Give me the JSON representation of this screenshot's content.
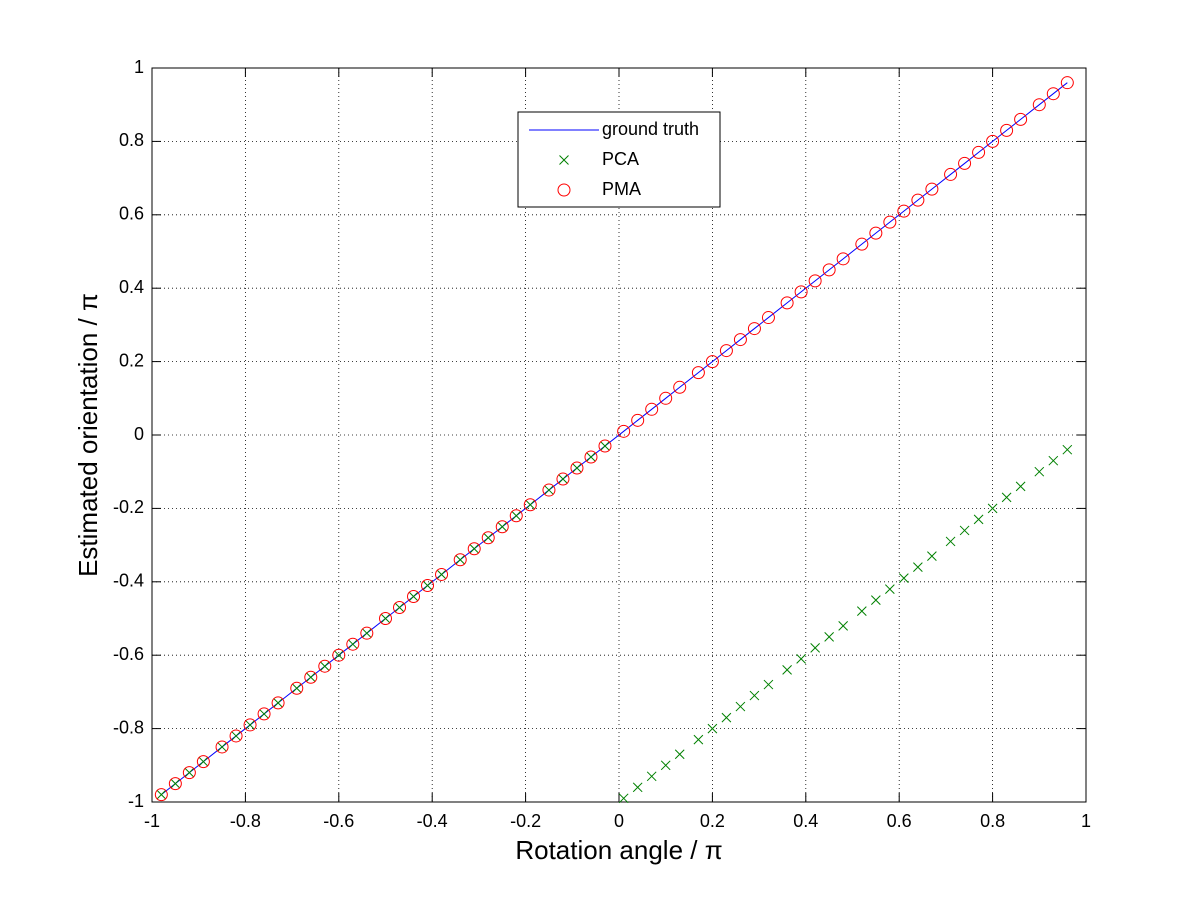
{
  "chart_data": {
    "type": "line",
    "xlabel": "Rotation angle / π",
    "ylabel": "Estimated orientation / π",
    "x": [
      -0.98,
      -0.95,
      -0.92,
      -0.89,
      -0.85,
      -0.82,
      -0.79,
      -0.76,
      -0.73,
      -0.69,
      -0.66,
      -0.63,
      -0.6,
      -0.57,
      -0.54,
      -0.5,
      -0.47,
      -0.44,
      -0.41,
      -0.38,
      -0.34,
      -0.31,
      -0.28,
      -0.25,
      -0.22,
      -0.19,
      -0.15,
      -0.12,
      -0.09,
      -0.06,
      -0.03,
      0.01,
      0.04,
      0.07,
      0.1,
      0.13,
      0.17,
      0.2,
      0.23,
      0.26,
      0.29,
      0.32,
      0.36,
      0.39,
      0.42,
      0.45,
      0.48,
      0.52,
      0.55,
      0.58,
      0.61,
      0.64,
      0.67,
      0.71,
      0.74,
      0.77,
      0.8,
      0.83,
      0.86,
      0.9,
      0.93,
      0.96
    ],
    "series": [
      {
        "name": "ground truth",
        "color": "#0000ff",
        "marker": "none",
        "values": [
          -0.98,
          -0.95,
          -0.92,
          -0.89,
          -0.85,
          -0.82,
          -0.79,
          -0.76,
          -0.73,
          -0.69,
          -0.66,
          -0.63,
          -0.6,
          -0.57,
          -0.54,
          -0.5,
          -0.47,
          -0.44,
          -0.41,
          -0.38,
          -0.34,
          -0.31,
          -0.28,
          -0.25,
          -0.22,
          -0.19,
          -0.15,
          -0.12,
          -0.09,
          -0.06,
          -0.03,
          0.01,
          0.04,
          0.07,
          0.1,
          0.13,
          0.17,
          0.2,
          0.23,
          0.26,
          0.29,
          0.32,
          0.36,
          0.39,
          0.42,
          0.45,
          0.48,
          0.52,
          0.55,
          0.58,
          0.61,
          0.64,
          0.67,
          0.71,
          0.74,
          0.77,
          0.8,
          0.83,
          0.86,
          0.9,
          0.93,
          0.96
        ]
      },
      {
        "name": "PCA",
        "color": "#008000",
        "marker": "x",
        "values": [
          -0.98,
          -0.95,
          -0.92,
          -0.89,
          -0.85,
          -0.82,
          -0.79,
          -0.76,
          -0.73,
          -0.69,
          -0.66,
          -0.63,
          -0.6,
          -0.57,
          -0.54,
          -0.5,
          -0.47,
          -0.44,
          -0.41,
          -0.38,
          -0.34,
          -0.31,
          -0.28,
          -0.25,
          -0.22,
          -0.19,
          -0.15,
          -0.12,
          -0.09,
          -0.06,
          -0.03,
          -0.99,
          -0.96,
          -0.93,
          -0.9,
          -0.87,
          -0.83,
          -0.8,
          -0.77,
          -0.74,
          -0.71,
          -0.68,
          -0.64,
          -0.61,
          -0.58,
          -0.55,
          -0.52,
          -0.48,
          -0.45,
          -0.42,
          -0.39,
          -0.36,
          -0.33,
          -0.29,
          -0.26,
          -0.23,
          -0.2,
          -0.17,
          -0.14,
          -0.1,
          -0.07,
          -0.04
        ]
      },
      {
        "name": "PMA",
        "color": "#ff0000",
        "marker": "o",
        "values": [
          -0.98,
          -0.95,
          -0.92,
          -0.89,
          -0.85,
          -0.82,
          -0.79,
          -0.76,
          -0.73,
          -0.69,
          -0.66,
          -0.63,
          -0.6,
          -0.57,
          -0.54,
          -0.5,
          -0.47,
          -0.44,
          -0.41,
          -0.38,
          -0.34,
          -0.31,
          -0.28,
          -0.25,
          -0.22,
          -0.19,
          -0.15,
          -0.12,
          -0.09,
          -0.06,
          -0.03,
          0.01,
          0.04,
          0.07,
          0.1,
          0.13,
          0.17,
          0.2,
          0.23,
          0.26,
          0.29,
          0.32,
          0.36,
          0.39,
          0.42,
          0.45,
          0.48,
          0.52,
          0.55,
          0.58,
          0.61,
          0.64,
          0.67,
          0.71,
          0.74,
          0.77,
          0.8,
          0.83,
          0.86,
          0.9,
          0.93,
          0.96
        ]
      }
    ],
    "xlim": [
      -1,
      1
    ],
    "xticks": [
      -1,
      -0.8,
      -0.6,
      -0.4,
      -0.2,
      0,
      0.2,
      0.4,
      0.6,
      0.8,
      1
    ],
    "ylim": [
      -1,
      1
    ],
    "yticks": [
      -1,
      -0.8,
      -0.6,
      -0.4,
      -0.2,
      0,
      0.2,
      0.4,
      0.6,
      0.8,
      1
    ],
    "grid": true,
    "legend": "north"
  }
}
